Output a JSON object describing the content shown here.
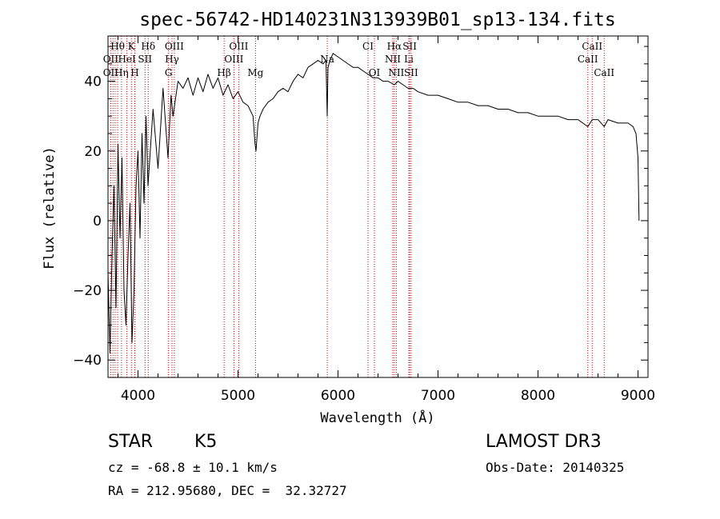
{
  "chart_data": {
    "type": "line",
    "title": "spec-56742-HD140231N313939B01_sp13-134.fits",
    "xlabel": "Wavelength (Å)",
    "ylabel": "Flux (relative)",
    "xlim": [
      3700,
      9100
    ],
    "ylim": [
      -45,
      53
    ],
    "xticks": [
      4000,
      5000,
      6000,
      7000,
      8000,
      9000
    ],
    "yticks": [
      -40,
      -20,
      0,
      20,
      40
    ],
    "x_minor_step": 200,
    "y_minor_step": 5,
    "series": [
      {
        "name": "flux",
        "x": [
          3700,
          3720,
          3740,
          3760,
          3780,
          3800,
          3820,
          3840,
          3860,
          3880,
          3900,
          3920,
          3940,
          3960,
          3980,
          4000,
          4020,
          4040,
          4060,
          4080,
          4100,
          4150,
          4200,
          4250,
          4300,
          4330,
          4350,
          4400,
          4450,
          4500,
          4550,
          4600,
          4650,
          4700,
          4750,
          4800,
          4850,
          4900,
          4950,
          5000,
          5050,
          5100,
          5150,
          5170,
          5180,
          5200,
          5220,
          5250,
          5300,
          5350,
          5400,
          5450,
          5500,
          5550,
          5600,
          5650,
          5700,
          5750,
          5800,
          5850,
          5880,
          5892,
          5900,
          5920,
          5950,
          6000,
          6050,
          6100,
          6150,
          6200,
          6250,
          6300,
          6350,
          6400,
          6450,
          6500,
          6563,
          6600,
          6650,
          6700,
          6750,
          6800,
          6900,
          7000,
          7100,
          7200,
          7300,
          7400,
          7500,
          7600,
          7700,
          7800,
          7900,
          8000,
          8100,
          8200,
          8300,
          8400,
          8498,
          8542,
          8600,
          8662,
          8700,
          8800,
          8900,
          8950,
          8980,
          9000,
          9010
        ],
        "values": [
          -15,
          -38,
          -10,
          10,
          -25,
          22,
          -5,
          18,
          -20,
          -30,
          -10,
          5,
          -35,
          -20,
          10,
          20,
          -5,
          25,
          5,
          30,
          10,
          32,
          15,
          38,
          18,
          36,
          30,
          40,
          38,
          41,
          36,
          41,
          37,
          42,
          38,
          41,
          36,
          39,
          35,
          37,
          34,
          33,
          30,
          22,
          20,
          28,
          30,
          32,
          34,
          35,
          37,
          38,
          37,
          40,
          42,
          41,
          44,
          45,
          46,
          45,
          46,
          30,
          44,
          46,
          48,
          47,
          46,
          45,
          44,
          44,
          43,
          42,
          41,
          41,
          40,
          40,
          39,
          40,
          39,
          38,
          38,
          37,
          36,
          36,
          35,
          34,
          34,
          33,
          33,
          32,
          32,
          31,
          31,
          30,
          30,
          30,
          29,
          29,
          27,
          29,
          29,
          27,
          29,
          28,
          28,
          27,
          25,
          18,
          0
        ]
      }
    ],
    "line_labels": [
      {
        "text": "Hθ",
        "x": 3797,
        "row": 1
      },
      {
        "text": "K",
        "x": 3934,
        "row": 1
      },
      {
        "text": "Hδ",
        "x": 4102,
        "row": 1
      },
      {
        "text": "OIII",
        "x": 4363,
        "row": 1
      },
      {
        "text": "OIII",
        "x": 5007,
        "row": 1
      },
      {
        "text": "CI",
        "x": 6300,
        "row": 1
      },
      {
        "text": "Hα",
        "x": 6563,
        "row": 1
      },
      {
        "text": "SII",
        "x": 6717,
        "row": 1
      },
      {
        "text": "CaII",
        "x": 8542,
        "row": 1
      },
      {
        "text": "OII",
        "x": 3727,
        "row": 2
      },
      {
        "text": "HeI",
        "x": 3889,
        "row": 2
      },
      {
        "text": "SII",
        "x": 4070,
        "row": 2
      },
      {
        "text": "Hγ",
        "x": 4340,
        "row": 2
      },
      {
        "text": "OIII",
        "x": 4959,
        "row": 2
      },
      {
        "text": "Na",
        "x": 5893,
        "row": 2
      },
      {
        "text": "NII",
        "x": 6548,
        "row": 2
      },
      {
        "text": "Li",
        "x": 6708,
        "row": 2
      },
      {
        "text": "CaII",
        "x": 8498,
        "row": 2
      },
      {
        "text": "OII",
        "x": 3727,
        "row": 3
      },
      {
        "text": "Hη",
        "x": 3835,
        "row": 3
      },
      {
        "text": "H",
        "x": 3968,
        "row": 3
      },
      {
        "text": "G",
        "x": 4305,
        "row": 3
      },
      {
        "text": "Hβ",
        "x": 4861,
        "row": 3
      },
      {
        "text": "Mg",
        "x": 5175,
        "row": 3
      },
      {
        "text": "OI",
        "x": 6364,
        "row": 3
      },
      {
        "text": "NII",
        "x": 6583,
        "row": 3
      },
      {
        "text": "SII",
        "x": 6731,
        "row": 3
      },
      {
        "text": "CaII",
        "x": 8662,
        "row": 3
      }
    ],
    "line_marks": [
      3727,
      3750,
      3771,
      3797,
      3835,
      3889,
      3934,
      3968,
      4070,
      4102,
      4305,
      4340,
      4363,
      4861,
      4959,
      5007,
      5175,
      5893,
      6300,
      6364,
      6548,
      6563,
      6583,
      6708,
      6717,
      6731,
      8498,
      8542,
      8662
    ],
    "line_color": "#000000",
    "mark_color": "#cc0000"
  },
  "info": {
    "object_class": "STAR",
    "subclass": "K5",
    "survey": "LAMOST DR3",
    "redshift": "cz = -68.8 ± 10.1 km/s",
    "obs_date": "Obs-Date: 20140325",
    "coords": "RA = 212.95680, DEC =  32.32727"
  }
}
